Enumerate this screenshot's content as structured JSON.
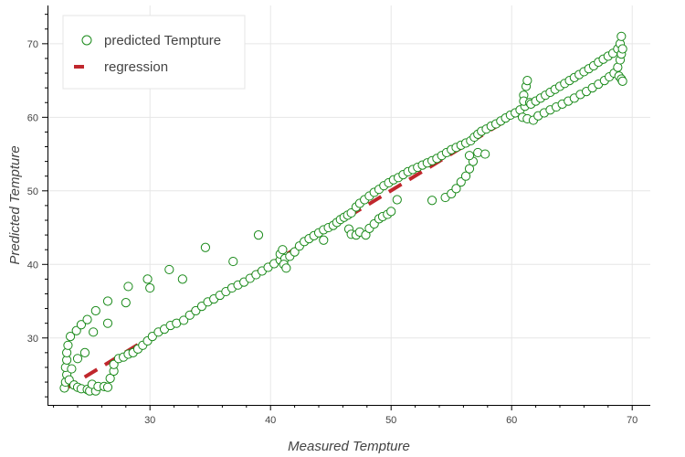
{
  "chart_data": {
    "type": "scatter",
    "xlabel": "Measured Tempture",
    "ylabel": "Predicted Tempture",
    "xlim": [
      21.5,
      71.5
    ],
    "ylim": [
      20.9,
      75.2
    ],
    "xticks": [
      30,
      40,
      50,
      60,
      70
    ],
    "yticks": [
      30,
      40,
      50,
      60,
      70
    ],
    "x_minor_step": 2,
    "y_minor_step": 2,
    "grid": true,
    "legend_position": "top-left",
    "series": [
      {
        "name": "predicted Tempture",
        "kind": "scatter",
        "marker": "open-circle",
        "color": "#1a8a1a",
        "points": [
          [
            22.9,
            23.2
          ],
          [
            23.0,
            24.0
          ],
          [
            23.1,
            25.0
          ],
          [
            23.0,
            26.0
          ],
          [
            23.1,
            27.0
          ],
          [
            23.1,
            28.0
          ],
          [
            23.2,
            29.0
          ],
          [
            23.4,
            30.2
          ],
          [
            23.9,
            31.0
          ],
          [
            24.3,
            31.8
          ],
          [
            24.8,
            32.5
          ],
          [
            25.5,
            33.7
          ],
          [
            26.5,
            35.0
          ],
          [
            28.2,
            37.0
          ],
          [
            29.8,
            38.0
          ],
          [
            30.0,
            36.8
          ],
          [
            31.6,
            39.3
          ],
          [
            32.7,
            38.0
          ],
          [
            34.6,
            42.3
          ],
          [
            36.9,
            40.4
          ],
          [
            39.0,
            44.0
          ],
          [
            23.5,
            25.8
          ],
          [
            24.0,
            27.2
          ],
          [
            24.6,
            28.0
          ],
          [
            25.3,
            30.8
          ],
          [
            26.5,
            32.0
          ],
          [
            28.0,
            34.8
          ],
          [
            23.3,
            24.3
          ],
          [
            23.7,
            23.6
          ],
          [
            24.0,
            23.3
          ],
          [
            24.3,
            23.1
          ],
          [
            24.8,
            23.0
          ],
          [
            25.0,
            22.8
          ],
          [
            25.5,
            22.8
          ],
          [
            25.2,
            23.7
          ],
          [
            25.7,
            23.4
          ],
          [
            26.2,
            23.4
          ],
          [
            26.5,
            23.3
          ],
          [
            26.7,
            24.5
          ],
          [
            27.0,
            25.5
          ],
          [
            27.0,
            26.4
          ],
          [
            27.4,
            27.2
          ],
          [
            27.8,
            27.4
          ],
          [
            28.2,
            27.8
          ],
          [
            28.6,
            28.0
          ],
          [
            29.0,
            28.5
          ],
          [
            29.4,
            29.0
          ],
          [
            29.8,
            29.6
          ],
          [
            30.2,
            30.2
          ],
          [
            30.7,
            30.8
          ],
          [
            31.2,
            31.2
          ],
          [
            31.7,
            31.7
          ],
          [
            32.2,
            32.0
          ],
          [
            32.8,
            32.4
          ],
          [
            33.3,
            33.1
          ],
          [
            33.8,
            33.7
          ],
          [
            34.3,
            34.3
          ],
          [
            34.8,
            34.9
          ],
          [
            35.3,
            35.3
          ],
          [
            35.8,
            35.8
          ],
          [
            36.3,
            36.3
          ],
          [
            36.8,
            36.8
          ],
          [
            37.3,
            37.2
          ],
          [
            37.8,
            37.6
          ],
          [
            38.3,
            38.1
          ],
          [
            38.8,
            38.6
          ],
          [
            39.3,
            39.1
          ],
          [
            39.8,
            39.6
          ],
          [
            40.3,
            40.1
          ],
          [
            40.8,
            40.6
          ],
          [
            40.8,
            41.4
          ],
          [
            41.0,
            42.0
          ],
          [
            41.2,
            40.8
          ],
          [
            41.1,
            40.0
          ],
          [
            41.3,
            39.5
          ],
          [
            41.6,
            41.1
          ],
          [
            42.0,
            41.7
          ],
          [
            42.4,
            42.5
          ],
          [
            42.8,
            43.1
          ],
          [
            43.2,
            43.5
          ],
          [
            43.6,
            43.9
          ],
          [
            44.0,
            44.3
          ],
          [
            44.4,
            44.7
          ],
          [
            44.8,
            45.0
          ],
          [
            45.2,
            45.3
          ],
          [
            45.5,
            45.7
          ],
          [
            45.8,
            46.1
          ],
          [
            46.1,
            46.4
          ],
          [
            46.4,
            46.7
          ],
          [
            46.7,
            47.0
          ],
          [
            44.4,
            43.3
          ],
          [
            46.5,
            44.8
          ],
          [
            46.7,
            44.1
          ],
          [
            47.1,
            44.0
          ],
          [
            47.4,
            44.4
          ],
          [
            47.9,
            44.0
          ],
          [
            48.2,
            44.9
          ],
          [
            48.6,
            45.5
          ],
          [
            49.0,
            46.2
          ],
          [
            49.3,
            46.5
          ],
          [
            49.7,
            46.8
          ],
          [
            50.0,
            47.2
          ],
          [
            50.5,
            48.8
          ],
          [
            47.1,
            47.8
          ],
          [
            47.4,
            48.3
          ],
          [
            47.8,
            48.8
          ],
          [
            48.2,
            49.3
          ],
          [
            48.6,
            49.8
          ],
          [
            49.0,
            50.2
          ],
          [
            49.4,
            50.7
          ],
          [
            49.8,
            51.1
          ],
          [
            50.2,
            51.5
          ],
          [
            50.6,
            51.8
          ],
          [
            51.0,
            52.2
          ],
          [
            51.4,
            52.6
          ],
          [
            51.8,
            52.9
          ],
          [
            52.2,
            53.2
          ],
          [
            52.6,
            53.5
          ],
          [
            53.0,
            53.8
          ],
          [
            53.4,
            54.1
          ],
          [
            53.8,
            54.4
          ],
          [
            54.2,
            54.8
          ],
          [
            54.6,
            55.2
          ],
          [
            55.0,
            55.6
          ],
          [
            55.4,
            55.9
          ],
          [
            55.8,
            56.2
          ],
          [
            56.2,
            56.5
          ],
          [
            53.4,
            48.7
          ],
          [
            54.5,
            49.1
          ],
          [
            55.0,
            49.6
          ],
          [
            55.4,
            50.3
          ],
          [
            55.8,
            51.2
          ],
          [
            56.2,
            52.0
          ],
          [
            56.5,
            53.0
          ],
          [
            56.8,
            54.0
          ],
          [
            57.2,
            55.2
          ],
          [
            57.8,
            55.0
          ],
          [
            56.5,
            54.8
          ],
          [
            56.6,
            56.8
          ],
          [
            56.9,
            57.3
          ],
          [
            57.2,
            57.7
          ],
          [
            57.5,
            58.1
          ],
          [
            57.9,
            58.4
          ],
          [
            58.3,
            58.8
          ],
          [
            58.7,
            59.1
          ],
          [
            59.1,
            59.5
          ],
          [
            59.5,
            59.9
          ],
          [
            59.9,
            60.3
          ],
          [
            60.3,
            60.6
          ],
          [
            60.7,
            61.0
          ],
          [
            61.1,
            61.5
          ],
          [
            61.0,
            63.0
          ],
          [
            61.2,
            64.2
          ],
          [
            61.3,
            65.0
          ],
          [
            61.0,
            62.2
          ],
          [
            60.9,
            60.0
          ],
          [
            61.5,
            62.0
          ],
          [
            61.6,
            61.8
          ],
          [
            62.0,
            62.2
          ],
          [
            62.4,
            62.6
          ],
          [
            62.8,
            63.0
          ],
          [
            63.2,
            63.4
          ],
          [
            63.6,
            63.8
          ],
          [
            64.0,
            64.2
          ],
          [
            64.4,
            64.6
          ],
          [
            64.8,
            65.0
          ],
          [
            65.2,
            65.4
          ],
          [
            65.6,
            65.8
          ],
          [
            66.0,
            66.2
          ],
          [
            66.4,
            66.6
          ],
          [
            66.8,
            67.0
          ],
          [
            67.2,
            67.5
          ],
          [
            67.6,
            67.9
          ],
          [
            68.0,
            68.3
          ],
          [
            68.4,
            68.7
          ],
          [
            68.8,
            69.3
          ],
          [
            69.0,
            70.0
          ],
          [
            69.1,
            71.0
          ],
          [
            61.3,
            59.8
          ],
          [
            61.8,
            59.6
          ],
          [
            62.2,
            60.2
          ],
          [
            62.7,
            60.6
          ],
          [
            63.2,
            61.0
          ],
          [
            63.7,
            61.4
          ],
          [
            64.2,
            61.8
          ],
          [
            64.7,
            62.2
          ],
          [
            65.2,
            62.6
          ],
          [
            65.7,
            63.1
          ],
          [
            66.2,
            63.5
          ],
          [
            66.7,
            64.0
          ],
          [
            67.2,
            64.5
          ],
          [
            67.7,
            65.0
          ],
          [
            68.1,
            65.5
          ],
          [
            68.5,
            66.0
          ],
          [
            68.8,
            66.8
          ],
          [
            69.0,
            67.8
          ],
          [
            69.1,
            68.6
          ],
          [
            69.2,
            69.3
          ],
          [
            68.9,
            65.6
          ],
          [
            69.1,
            65.2
          ],
          [
            69.2,
            64.9
          ]
        ]
      },
      {
        "name": "regression",
        "kind": "line",
        "dash": "dashed",
        "color": "#c0272d",
        "points": [
          [
            22.9,
            23.0
          ],
          [
            69.2,
            69.2
          ]
        ]
      }
    ]
  }
}
